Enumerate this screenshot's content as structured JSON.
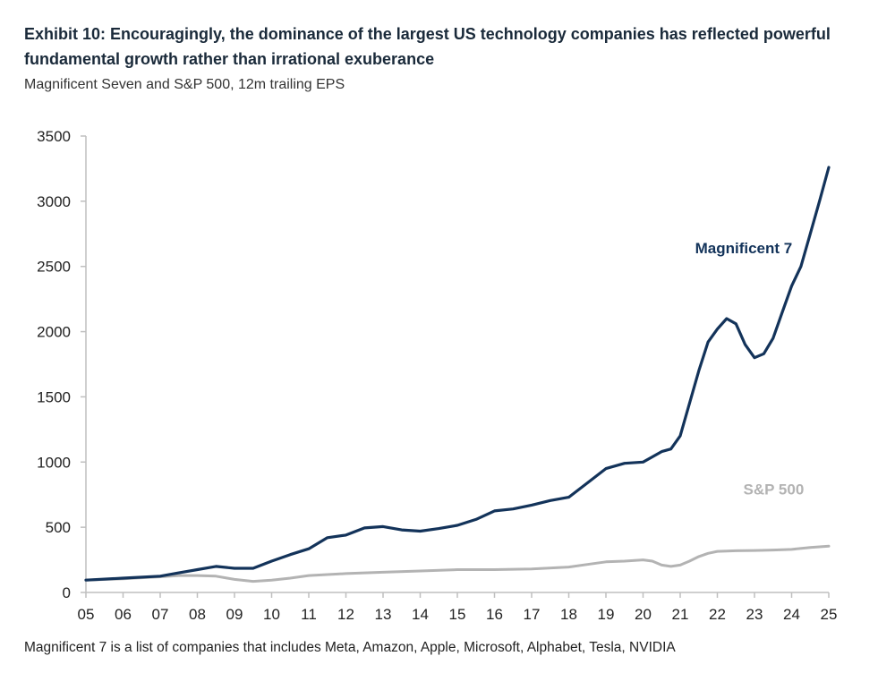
{
  "title": "Exhibit 10: Encouragingly, the dominance of the largest US technology companies has reflected powerful fundamental growth rather than irrational exuberance",
  "subtitle": "Magnificent Seven and S&P 500, 12m trailing EPS",
  "footnote": "Magnificent 7 is a list of companies that includes Meta, Amazon, Apple, Microsoft, Alphabet, Tesla, NVIDIA",
  "colors": {
    "mag7": "#13335a",
    "sp500": "#b3b3b3",
    "axis": "#bfbfbf"
  },
  "chart_data": {
    "type": "line",
    "title": "Magnificent Seven and S&P 500, 12m trailing EPS",
    "xlabel": "",
    "ylabel": "",
    "xlim": [
      2005,
      2025
    ],
    "ylim": [
      0,
      3500
    ],
    "grid": false,
    "x_ticks": [
      2005,
      2006,
      2007,
      2008,
      2009,
      2010,
      2011,
      2012,
      2013,
      2014,
      2015,
      2016,
      2017,
      2018,
      2019,
      2020,
      2021,
      2022,
      2023,
      2024,
      2025
    ],
    "x_tick_labels": [
      "05",
      "06",
      "07",
      "08",
      "09",
      "10",
      "11",
      "12",
      "13",
      "14",
      "15",
      "16",
      "17",
      "18",
      "19",
      "20",
      "21",
      "22",
      "23",
      "24",
      "25"
    ],
    "y_ticks": [
      0,
      500,
      1000,
      1500,
      2000,
      2500,
      3000,
      3500
    ],
    "y_tick_labels": [
      "0",
      "500",
      "1000",
      "1500",
      "2000",
      "2500",
      "3000",
      "3500"
    ],
    "series": [
      {
        "name": "Magnificent 7",
        "x": [
          2005.0,
          2006.0,
          2007.0,
          2007.5,
          2008.0,
          2008.5,
          2009.0,
          2009.5,
          2010.0,
          2010.5,
          2011.0,
          2011.5,
          2012.0,
          2012.5,
          2013.0,
          2013.5,
          2014.0,
          2014.5,
          2015.0,
          2015.5,
          2016.0,
          2016.5,
          2017.0,
          2017.5,
          2018.0,
          2018.5,
          2019.0,
          2019.5,
          2020.0,
          2020.25,
          2020.5,
          2020.75,
          2021.0,
          2021.25,
          2021.5,
          2021.75,
          2022.0,
          2022.25,
          2022.5,
          2022.75,
          2023.0,
          2023.25,
          2023.5,
          2023.75,
          2024.0,
          2024.25,
          2024.5,
          2024.75,
          2025.0
        ],
        "values": [
          95,
          110,
          125,
          150,
          175,
          200,
          185,
          185,
          240,
          290,
          335,
          420,
          440,
          495,
          505,
          480,
          470,
          490,
          515,
          560,
          625,
          640,
          670,
          705,
          730,
          840,
          950,
          990,
          1000,
          1040,
          1080,
          1100,
          1200,
          1450,
          1700,
          1920,
          2020,
          2100,
          2060,
          1900,
          1800,
          1830,
          1950,
          2150,
          2350,
          2500,
          2750,
          3000,
          3260
        ]
      },
      {
        "name": "S&P 500",
        "x": [
          2005.0,
          2006.0,
          2007.0,
          2007.5,
          2008.0,
          2008.5,
          2009.0,
          2009.5,
          2010.0,
          2010.5,
          2011.0,
          2012.0,
          2013.0,
          2014.0,
          2015.0,
          2016.0,
          2017.0,
          2018.0,
          2018.5,
          2019.0,
          2019.5,
          2020.0,
          2020.25,
          2020.5,
          2020.75,
          2021.0,
          2021.25,
          2021.5,
          2021.75,
          2022.0,
          2022.5,
          2023.0,
          2023.5,
          2024.0,
          2024.5,
          2025.0
        ],
        "values": [
          95,
          105,
          120,
          130,
          130,
          125,
          100,
          85,
          95,
          110,
          130,
          145,
          155,
          165,
          175,
          175,
          180,
          195,
          215,
          235,
          240,
          250,
          240,
          210,
          200,
          210,
          240,
          275,
          300,
          315,
          320,
          322,
          325,
          330,
          345,
          355
        ]
      }
    ],
    "annotations": [
      {
        "text": "Magnificent 7",
        "series": "Magnificent 7",
        "x": 2021.4,
        "y": 2600
      },
      {
        "text": "S&P 500",
        "series": "S&P 500",
        "x": 2022.7,
        "y": 750
      }
    ]
  }
}
